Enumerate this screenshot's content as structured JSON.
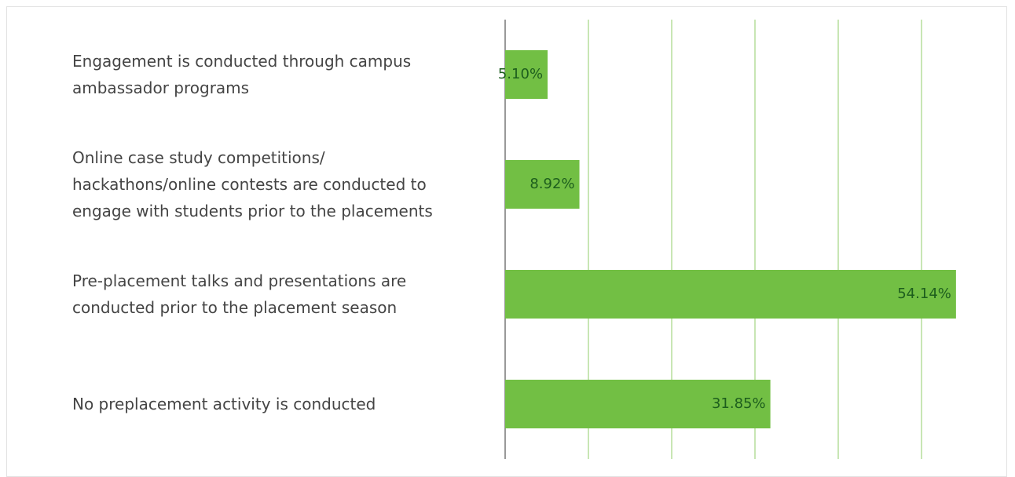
{
  "chart_data": {
    "type": "bar",
    "orientation": "horizontal",
    "categories": [
      "Engagement is conducted through campus ambassador programs",
      "Online case study competitions/ hackathons/online contests are conducted to engage with students prior to the placements",
      "Pre-placement talks and presentations are conducted prior to the placement season",
      "No preplacement activity is conducted"
    ],
    "values": [
      5.1,
      8.92,
      54.14,
      31.85
    ],
    "value_labels": [
      "5.10%",
      "8.92%",
      "54.14%",
      "31.85%"
    ],
    "color": "#72bf44",
    "grid_color": "#c8e6b4",
    "axis_color": "#999999",
    "xlim": [
      0,
      55
    ],
    "xticks": [
      0,
      10,
      20,
      30,
      40,
      50
    ],
    "grid": true
  }
}
